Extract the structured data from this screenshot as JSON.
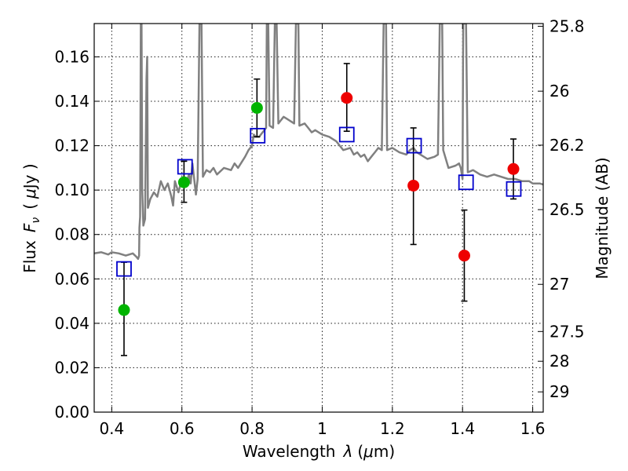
{
  "chart_data": {
    "type": "scatter",
    "xlabel": "Wavelength  λ (μm)",
    "ylabel": "Flux  F_ν  ( μJy )",
    "ylabel_parts": {
      "prefix": "Flux",
      "symbol": "F",
      "sub": "ν",
      "unit_open": "(",
      "unit_mu": "μ",
      "unit": "Jy )"
    },
    "xlabel_parts": {
      "prefix": "Wavelength",
      "symbol": "λ",
      "unit": "(μm)",
      "unit_open": "(",
      "unit_mu": "μ",
      "unit_close": "m)"
    },
    "y2label": "Magnitude (AB)",
    "xlim": [
      0.35,
      1.63
    ],
    "ylim": [
      0.0,
      0.175
    ],
    "grid": true,
    "x_ticks": [
      0.4,
      0.6,
      0.8,
      1.0,
      1.2,
      1.4,
      1.6
    ],
    "x_tick_labels": [
      "0.4",
      "0.6",
      "0.8",
      "1",
      "1.2",
      "1.4",
      "1.6"
    ],
    "y_ticks": [
      0.0,
      0.02,
      0.04,
      0.06,
      0.08,
      0.1,
      0.12,
      0.14,
      0.16
    ],
    "y_tick_labels": [
      "0.00",
      "0.02",
      "0.04",
      "0.06",
      "0.08",
      "0.10",
      "0.12",
      "0.14",
      "0.16"
    ],
    "y2_ticks": [
      {
        "mag": 25.8,
        "label": "25.8"
      },
      {
        "mag": 26,
        "label": "26"
      },
      {
        "mag": 26.2,
        "label": "26.2"
      },
      {
        "mag": 26.5,
        "label": "26.5"
      },
      {
        "mag": 27,
        "label": "27"
      },
      {
        "mag": 27.5,
        "label": "27.5"
      },
      {
        "mag": 28,
        "label": "28"
      },
      {
        "mag": 29,
        "label": "29"
      }
    ],
    "colors": {
      "spectrum": "#808080",
      "model": "#0000cc",
      "green": "#00b400",
      "red": "#ee0000",
      "errorbar": "#000000"
    },
    "series": [
      {
        "kind": "points",
        "color": "green",
        "points": [
          {
            "x": 0.435,
            "y": 0.046,
            "yerr": [
              0.0205,
              0.0215
            ]
          },
          {
            "x": 0.606,
            "y": 0.1035,
            "yerr": [
              0.009,
              0.0095
            ]
          },
          {
            "x": 0.814,
            "y": 0.137,
            "yerr": [
              0.013,
              0.013
            ]
          }
        ]
      },
      {
        "kind": "points",
        "color": "red",
        "points": [
          {
            "x": 1.07,
            "y": 0.1415,
            "yerr": [
              0.015,
              0.0155
            ]
          },
          {
            "x": 1.26,
            "y": 0.102,
            "yerr": [
              0.0265,
              0.026
            ]
          },
          {
            "x": 1.405,
            "y": 0.0705,
            "yerr": [
              0.0205,
              0.0205
            ]
          },
          {
            "x": 1.545,
            "y": 0.1095,
            "yerr": [
              0.0135,
              0.0135
            ]
          }
        ]
      },
      {
        "kind": "model_squares",
        "color": "model",
        "points": [
          {
            "x": 0.435,
            "y": 0.0645
          },
          {
            "x": 0.609,
            "y": 0.1105
          },
          {
            "x": 0.816,
            "y": 0.1245
          },
          {
            "x": 1.07,
            "y": 0.125
          },
          {
            "x": 1.262,
            "y": 0.12
          },
          {
            "x": 1.41,
            "y": 0.1035
          },
          {
            "x": 1.546,
            "y": 0.1005
          }
        ]
      },
      {
        "kind": "spectrum",
        "color": "spectrum",
        "points": [
          [
            0.35,
            0.0715
          ],
          [
            0.37,
            0.072
          ],
          [
            0.39,
            0.071
          ],
          [
            0.4,
            0.072
          ],
          [
            0.42,
            0.0715
          ],
          [
            0.44,
            0.0705
          ],
          [
            0.46,
            0.0715
          ],
          [
            0.47,
            0.07
          ],
          [
            0.475,
            0.069
          ],
          [
            0.478,
            0.0705
          ],
          [
            0.479,
            0.083
          ],
          [
            0.481,
            0.088
          ],
          [
            0.483,
            0.175
          ],
          [
            0.485,
            0.175
          ],
          [
            0.487,
            0.1
          ],
          [
            0.49,
            0.084
          ],
          [
            0.495,
            0.087
          ],
          [
            0.499,
            0.15
          ],
          [
            0.501,
            0.16
          ],
          [
            0.503,
            0.092
          ],
          [
            0.51,
            0.096
          ],
          [
            0.52,
            0.099
          ],
          [
            0.53,
            0.097
          ],
          [
            0.54,
            0.104
          ],
          [
            0.55,
            0.1
          ],
          [
            0.56,
            0.103
          ],
          [
            0.57,
            0.097
          ],
          [
            0.575,
            0.093
          ],
          [
            0.58,
            0.104
          ],
          [
            0.59,
            0.099
          ],
          [
            0.6,
            0.105
          ],
          [
            0.61,
            0.102
          ],
          [
            0.62,
            0.107
          ],
          [
            0.625,
            0.103
          ],
          [
            0.63,
            0.112
          ],
          [
            0.64,
            0.098
          ],
          [
            0.645,
            0.105
          ],
          [
            0.65,
            0.175
          ],
          [
            0.656,
            0.175
          ],
          [
            0.66,
            0.106
          ],
          [
            0.67,
            0.109
          ],
          [
            0.68,
            0.108
          ],
          [
            0.69,
            0.11
          ],
          [
            0.7,
            0.107
          ],
          [
            0.72,
            0.11
          ],
          [
            0.74,
            0.109
          ],
          [
            0.75,
            0.112
          ],
          [
            0.76,
            0.11
          ],
          [
            0.78,
            0.115
          ],
          [
            0.79,
            0.118
          ],
          [
            0.8,
            0.12
          ],
          [
            0.805,
            0.125
          ],
          [
            0.81,
            0.124
          ],
          [
            0.82,
            0.124
          ],
          [
            0.83,
            0.126
          ],
          [
            0.84,
            0.128
          ],
          [
            0.842,
            0.175
          ],
          [
            0.846,
            0.175
          ],
          [
            0.85,
            0.129
          ],
          [
            0.86,
            0.128
          ],
          [
            0.865,
            0.175
          ],
          [
            0.87,
            0.175
          ],
          [
            0.875,
            0.13
          ],
          [
            0.88,
            0.131
          ],
          [
            0.89,
            0.133
          ],
          [
            0.9,
            0.132
          ],
          [
            0.92,
            0.13
          ],
          [
            0.925,
            0.175
          ],
          [
            0.932,
            0.175
          ],
          [
            0.935,
            0.129
          ],
          [
            0.95,
            0.13
          ],
          [
            0.96,
            0.128
          ],
          [
            0.97,
            0.126
          ],
          [
            0.98,
            0.127
          ],
          [
            1.0,
            0.125
          ],
          [
            1.02,
            0.124
          ],
          [
            1.04,
            0.122
          ],
          [
            1.05,
            0.12
          ],
          [
            1.06,
            0.118
          ],
          [
            1.08,
            0.119
          ],
          [
            1.09,
            0.116
          ],
          [
            1.1,
            0.117
          ],
          [
            1.11,
            0.115
          ],
          [
            1.12,
            0.116
          ],
          [
            1.13,
            0.113
          ],
          [
            1.14,
            0.115
          ],
          [
            1.15,
            0.117
          ],
          [
            1.16,
            0.119
          ],
          [
            1.17,
            0.118
          ],
          [
            1.175,
            0.175
          ],
          [
            1.182,
            0.175
          ],
          [
            1.185,
            0.118
          ],
          [
            1.2,
            0.119
          ],
          [
            1.22,
            0.117
          ],
          [
            1.24,
            0.116
          ],
          [
            1.25,
            0.118
          ],
          [
            1.26,
            0.119
          ],
          [
            1.27,
            0.117
          ],
          [
            1.28,
            0.116
          ],
          [
            1.3,
            0.114
          ],
          [
            1.32,
            0.115
          ],
          [
            1.33,
            0.116
          ],
          [
            1.335,
            0.175
          ],
          [
            1.342,
            0.175
          ],
          [
            1.345,
            0.118
          ],
          [
            1.36,
            0.11
          ],
          [
            1.38,
            0.111
          ],
          [
            1.39,
            0.112
          ],
          [
            1.395,
            0.11
          ],
          [
            1.4,
            0.105
          ],
          [
            1.402,
            0.175
          ],
          [
            1.41,
            0.175
          ],
          [
            1.415,
            0.108
          ],
          [
            1.43,
            0.109
          ],
          [
            1.45,
            0.107
          ],
          [
            1.47,
            0.106
          ],
          [
            1.49,
            0.107
          ],
          [
            1.51,
            0.106
          ],
          [
            1.53,
            0.105
          ],
          [
            1.55,
            0.105
          ],
          [
            1.57,
            0.104
          ],
          [
            1.59,
            0.104
          ],
          [
            1.6,
            0.103
          ],
          [
            1.62,
            0.103
          ],
          [
            1.63,
            0.1025
          ]
        ]
      }
    ]
  }
}
